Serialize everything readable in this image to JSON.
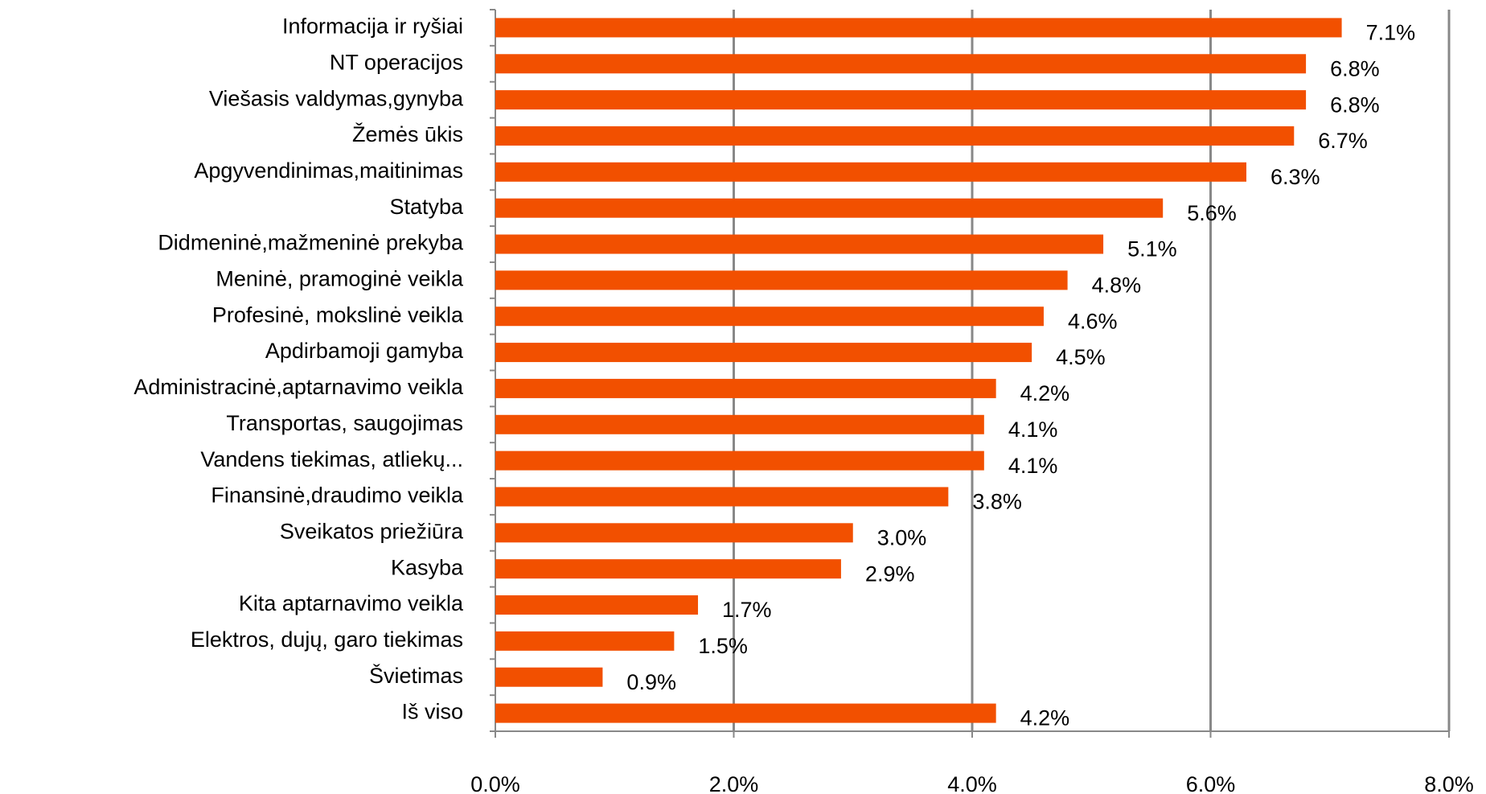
{
  "chart_data": {
    "type": "barh",
    "categories": [
      "Informacija ir ryšiai",
      "NT operacijos",
      "Viešasis valdymas,gynyba",
      "Žemės ūkis",
      "Apgyvendinimas,maitinimas",
      "Statyba",
      "Didmeninė,mažmeninė prekyba",
      "Meninė, pramoginė veikla",
      "Profesinė, mokslinė veikla",
      "Apdirbamoji gamyba",
      "Administracinė,aptarnavimo veikla",
      "Transportas, saugojimas",
      "Vandens tiekimas, atliekų...",
      "Finansinė,draudimo veikla",
      "Sveikatos priežiūra",
      "Kasyba",
      "Kita aptarnavimo veikla",
      "Elektros, dujų, garo tiekimas",
      "Švietimas",
      "Iš viso"
    ],
    "values": [
      7.1,
      6.8,
      6.8,
      6.7,
      6.3,
      5.6,
      5.1,
      4.8,
      4.6,
      4.5,
      4.2,
      4.1,
      4.1,
      3.8,
      3.0,
      2.9,
      1.7,
      1.5,
      0.9,
      4.2
    ],
    "value_labels": [
      "7.1%",
      "6.8%",
      "6.8%",
      "6.7%",
      "6.3%",
      "5.6%",
      "5.1%",
      "4.8%",
      "4.6%",
      "4.5%",
      "4.2%",
      "4.1%",
      "4.1%",
      "3.8%",
      "3.0%",
      "2.9%",
      "1.7%",
      "1.5%",
      "0.9%",
      "4.2%"
    ],
    "color": "#f25000",
    "xlim": [
      0,
      8
    ],
    "xticks": [
      {
        "value": 0,
        "label": "0.0%"
      },
      {
        "value": 2,
        "label": "2.0%"
      },
      {
        "value": 4,
        "label": "4.0%"
      },
      {
        "value": 6,
        "label": "6.0%"
      },
      {
        "value": 8,
        "label": "8.0%"
      }
    ],
    "grid": true
  }
}
